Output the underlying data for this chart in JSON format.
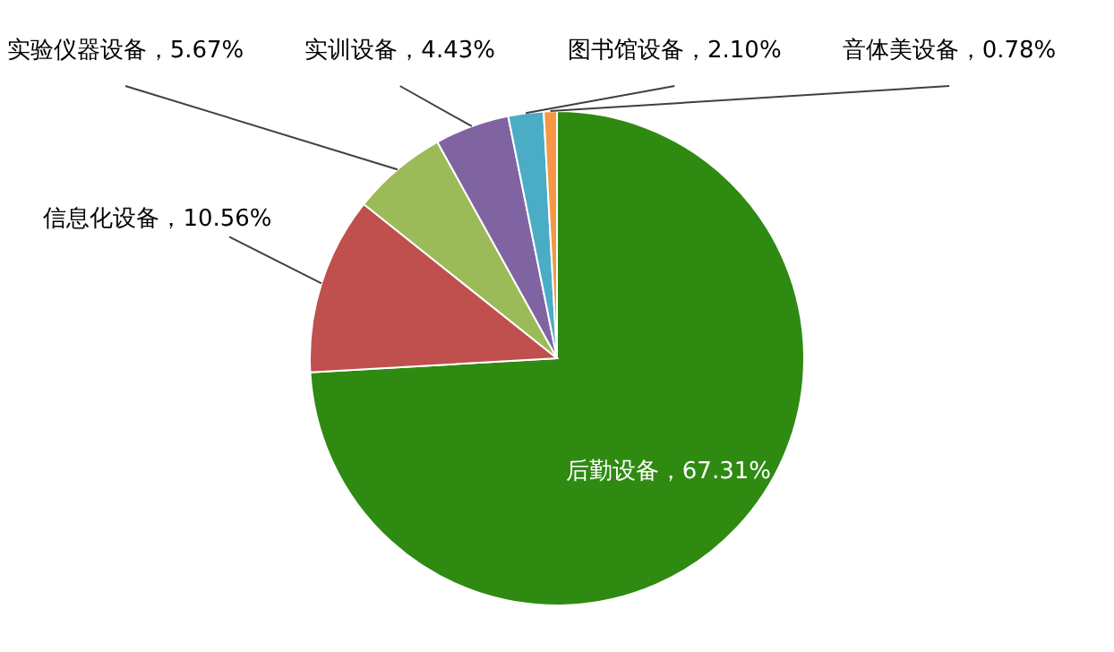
{
  "chart_data": {
    "type": "pie",
    "categories": [
      "后勤设备",
      "信息化设备",
      "实验仪器设备",
      "实训设备",
      "图书馆设备",
      "音体美设备"
    ],
    "values": [
      67.31,
      10.56,
      5.67,
      4.43,
      2.1,
      0.78
    ],
    "value_labels": [
      "67.31%",
      "10.56%",
      "5.67%",
      "4.43%",
      "2.10%",
      "0.78%"
    ],
    "colors": [
      "#2f8a12",
      "#c0504d",
      "#9bbb59",
      "#8064a2",
      "#4bacc6",
      "#f79646"
    ]
  }
}
